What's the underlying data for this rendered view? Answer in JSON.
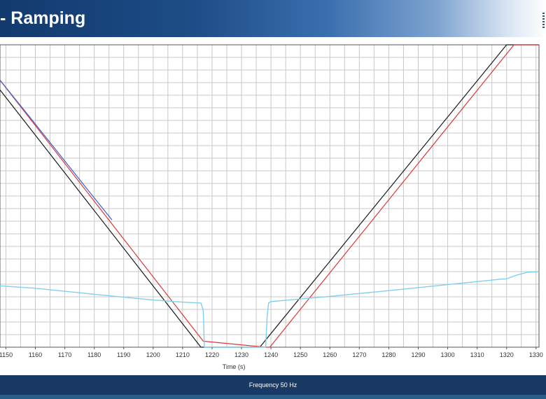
{
  "slide": {
    "title": "- Ramping",
    "footer": "Frequency 50 Hz"
  },
  "chart_data": {
    "type": "line",
    "title": "",
    "xlabel": "Time (s)",
    "ylabel": "",
    "xlim": [
      1148,
      1331
    ],
    "ylim": [
      0,
      100
    ],
    "x_ticks": [
      1150,
      1160,
      1170,
      1180,
      1190,
      1200,
      1210,
      1220,
      1230,
      1240,
      1250,
      1260,
      1270,
      1280,
      1290,
      1300,
      1310,
      1320,
      1330
    ],
    "grid": true,
    "legend": "none",
    "series": [
      {
        "color": "#1a1a1a",
        "x": [
          1148,
          1216.2,
          1236.2,
          1320,
          1331
        ],
        "y": [
          85.1,
          0,
          0,
          100,
          100
        ]
      },
      {
        "color": "#d93a3a",
        "x": [
          1148,
          1217.0,
          1238.2,
          1239.6,
          1322.5,
          1331
        ],
        "y": [
          88.3,
          2.0,
          0,
          0,
          100,
          100
        ]
      },
      {
        "color": "#3a5fd0",
        "x": [
          1148,
          1158,
          1168,
          1178,
          1186
        ],
        "y": [
          88.3,
          76.2,
          64.0,
          51.8,
          42.1
        ]
      },
      {
        "color": "#7fd0ee",
        "x": [
          1148,
          1160,
          1180,
          1200,
          1210,
          1216.2,
          1217.0,
          1217.4,
          1238.2,
          1238.7,
          1239.2,
          1240,
          1260,
          1280,
          1300,
          1318,
          1320,
          1323,
          1327,
          1331
        ],
        "y": [
          20.3,
          19.5,
          17.5,
          15.6,
          14.9,
          14.6,
          12.3,
          0,
          0,
          10.0,
          14.6,
          15.1,
          16.8,
          18.7,
          20.7,
          22.5,
          22.6,
          23.7,
          24.8,
          24.9
        ]
      }
    ]
  }
}
